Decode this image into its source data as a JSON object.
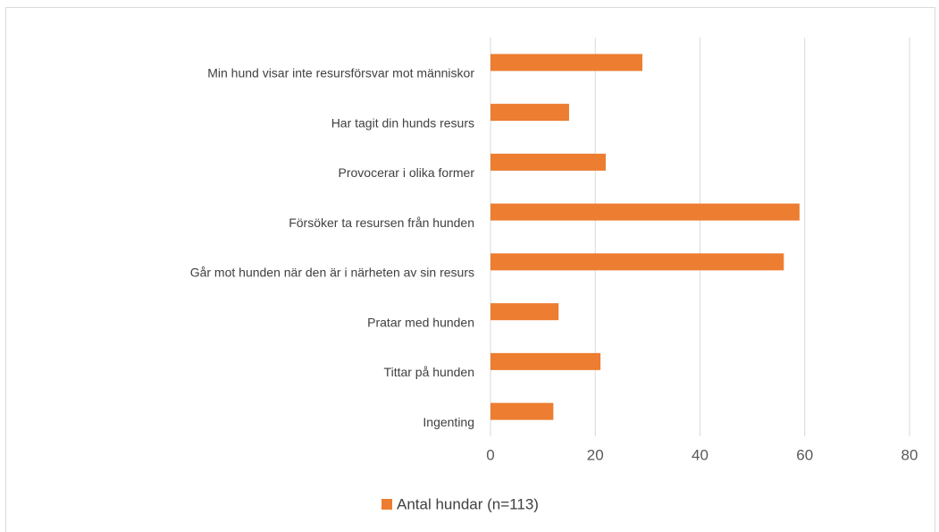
{
  "chart_data": {
    "type": "bar",
    "orientation": "horizontal",
    "categories": [
      "Min hund visar inte resursförsvar mot människor",
      "Har tagit din hunds resurs",
      "Provocerar i olika former",
      "Försöker ta resursen från hunden",
      "Går mot hunden när den är i närheten av sin resurs",
      "Pratar med hunden",
      "Tittar på hunden",
      "Ingenting"
    ],
    "series": [
      {
        "name": "Antal hundar (n=113)",
        "color": "#ed7d31",
        "values": [
          29,
          15,
          22,
          59,
          56,
          13,
          21,
          12
        ]
      }
    ],
    "xlim": [
      0,
      80
    ],
    "xticks": [
      0,
      20,
      40,
      60,
      80
    ],
    "grid": true,
    "legend": "bottom"
  }
}
